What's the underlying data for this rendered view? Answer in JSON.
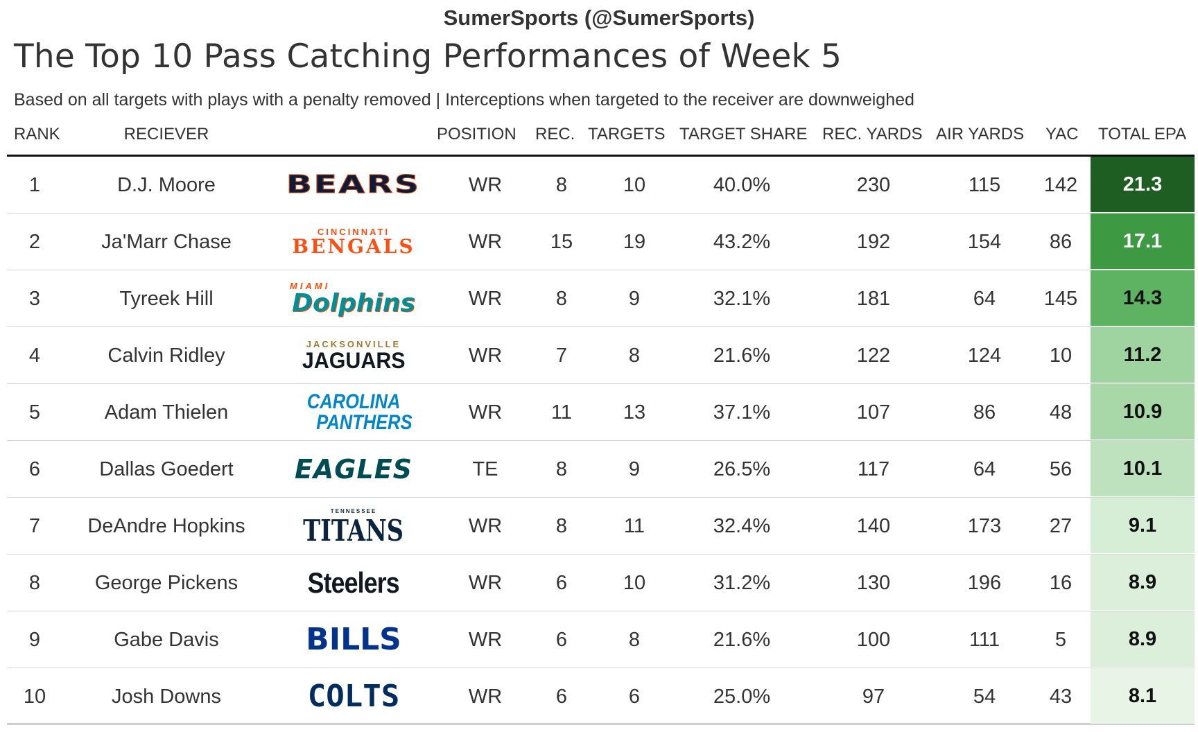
{
  "brand": "SumerSports (@SumerSports)",
  "title": "The Top 10 Pass Catching Performances of Week 5",
  "subtitle": "Based on all targets with plays with a penalty removed | Interceptions when targeted to the receiver are downweighed",
  "columns": {
    "rank": "RANK",
    "receiver": "RECIEVER",
    "position": "POSITION",
    "rec": "REC.",
    "targets": "TARGETS",
    "target_share": "TARGET SHARE",
    "rec_yards": "REC. YARDS",
    "air_yards": "AIR YARDS",
    "yac": "YAC",
    "total_epa": "TOTAL EPA"
  },
  "rows": [
    {
      "rank": "1",
      "receiver": "D.J. Moore",
      "logo_top": "",
      "logo_main": "BEARS",
      "logo_line2": "",
      "logo_color": "#0b1c3a",
      "logo_top_color": "",
      "position": "WR",
      "rec": "8",
      "targets": "10",
      "target_share": "40.0%",
      "rec_yards": "230",
      "air_yards": "115",
      "yac": "142",
      "total_epa": "21.3",
      "epa_bg": "#1e5e22",
      "epa_color": "#ffffff"
    },
    {
      "rank": "2",
      "receiver": "Ja'Marr Chase",
      "logo_top": "CINCINNATI",
      "logo_main": "BENGALS",
      "logo_line2": "",
      "logo_color": "#fb4f14",
      "logo_top_color": "#fb4f14",
      "position": "WR",
      "rec": "15",
      "targets": "19",
      "target_share": "43.2%",
      "rec_yards": "192",
      "air_yards": "154",
      "yac": "86",
      "total_epa": "17.1",
      "epa_bg": "#3d9a43",
      "epa_color": "#ffffff"
    },
    {
      "rank": "3",
      "receiver": "Tyreek Hill",
      "logo_top": "MIAMI",
      "logo_main": "Dolphins",
      "logo_line2": "",
      "logo_color": "#008e97",
      "logo_top_color": "#fc4c02",
      "position": "WR",
      "rec": "8",
      "targets": "9",
      "target_share": "32.1%",
      "rec_yards": "181",
      "air_yards": "64",
      "yac": "145",
      "total_epa": "14.3",
      "epa_bg": "#5db362",
      "epa_color": "#111111"
    },
    {
      "rank": "4",
      "receiver": "Calvin Ridley",
      "logo_top": "JACKSONVILLE",
      "logo_main": "JAGUARS",
      "logo_line2": "",
      "logo_color": "#101820",
      "logo_top_color": "#9f792c",
      "position": "WR",
      "rec": "7",
      "targets": "8",
      "target_share": "21.6%",
      "rec_yards": "122",
      "air_yards": "124",
      "yac": "10",
      "total_epa": "11.2",
      "epa_bg": "#9fd3a0",
      "epa_color": "#111111"
    },
    {
      "rank": "5",
      "receiver": "Adam Thielen",
      "logo_top": "",
      "logo_main": "CAROLINA",
      "logo_line2": "PANTHERS",
      "logo_color": "#0085ca",
      "logo_top_color": "",
      "position": "WR",
      "rec": "11",
      "targets": "13",
      "target_share": "37.1%",
      "rec_yards": "107",
      "air_yards": "86",
      "yac": "48",
      "total_epa": "10.9",
      "epa_bg": "#a8d7a8",
      "epa_color": "#111111"
    },
    {
      "rank": "6",
      "receiver": "Dallas Goedert",
      "logo_top": "",
      "logo_main": "EAGLES",
      "logo_line2": "",
      "logo_color": "#004c54",
      "logo_top_color": "",
      "position": "TE",
      "rec": "8",
      "targets": "9",
      "target_share": "26.5%",
      "rec_yards": "117",
      "air_yards": "64",
      "yac": "56",
      "total_epa": "10.1",
      "epa_bg": "#bde2bd",
      "epa_color": "#111111"
    },
    {
      "rank": "7",
      "receiver": "DeAndre Hopkins",
      "logo_top": "TENNESSEE",
      "logo_main": "TITANS",
      "logo_line2": "",
      "logo_color": "#0c2340",
      "logo_top_color": "#0c2340",
      "position": "WR",
      "rec": "8",
      "targets": "11",
      "target_share": "32.4%",
      "rec_yards": "140",
      "air_yards": "173",
      "yac": "27",
      "total_epa": "9.1",
      "epa_bg": "#d6edd6",
      "epa_color": "#111111"
    },
    {
      "rank": "8",
      "receiver": "George Pickens",
      "logo_top": "",
      "logo_main": "Steelers",
      "logo_line2": "",
      "logo_color": "#101820",
      "logo_top_color": "",
      "position": "WR",
      "rec": "6",
      "targets": "10",
      "target_share": "31.2%",
      "rec_yards": "130",
      "air_yards": "196",
      "yac": "16",
      "total_epa": "8.9",
      "epa_bg": "#dbefdb",
      "epa_color": "#111111"
    },
    {
      "rank": "9",
      "receiver": "Gabe Davis",
      "logo_top": "",
      "logo_main": "BILLS",
      "logo_line2": "",
      "logo_color": "#00338d",
      "logo_top_color": "",
      "position": "WR",
      "rec": "6",
      "targets": "8",
      "target_share": "21.6%",
      "rec_yards": "100",
      "air_yards": "111",
      "yac": "5",
      "total_epa": "8.9",
      "epa_bg": "#dbefdb",
      "epa_color": "#111111"
    },
    {
      "rank": "10",
      "receiver": "Josh Downs",
      "logo_top": "",
      "logo_main": "COLTS",
      "logo_line2": "",
      "logo_color": "#002c5f",
      "logo_top_color": "",
      "position": "WR",
      "rec": "6",
      "targets": "6",
      "target_share": "25.0%",
      "rec_yards": "97",
      "air_yards": "54",
      "yac": "43",
      "total_epa": "8.1",
      "epa_bg": "#e7f4e6",
      "epa_color": "#111111"
    }
  ]
}
